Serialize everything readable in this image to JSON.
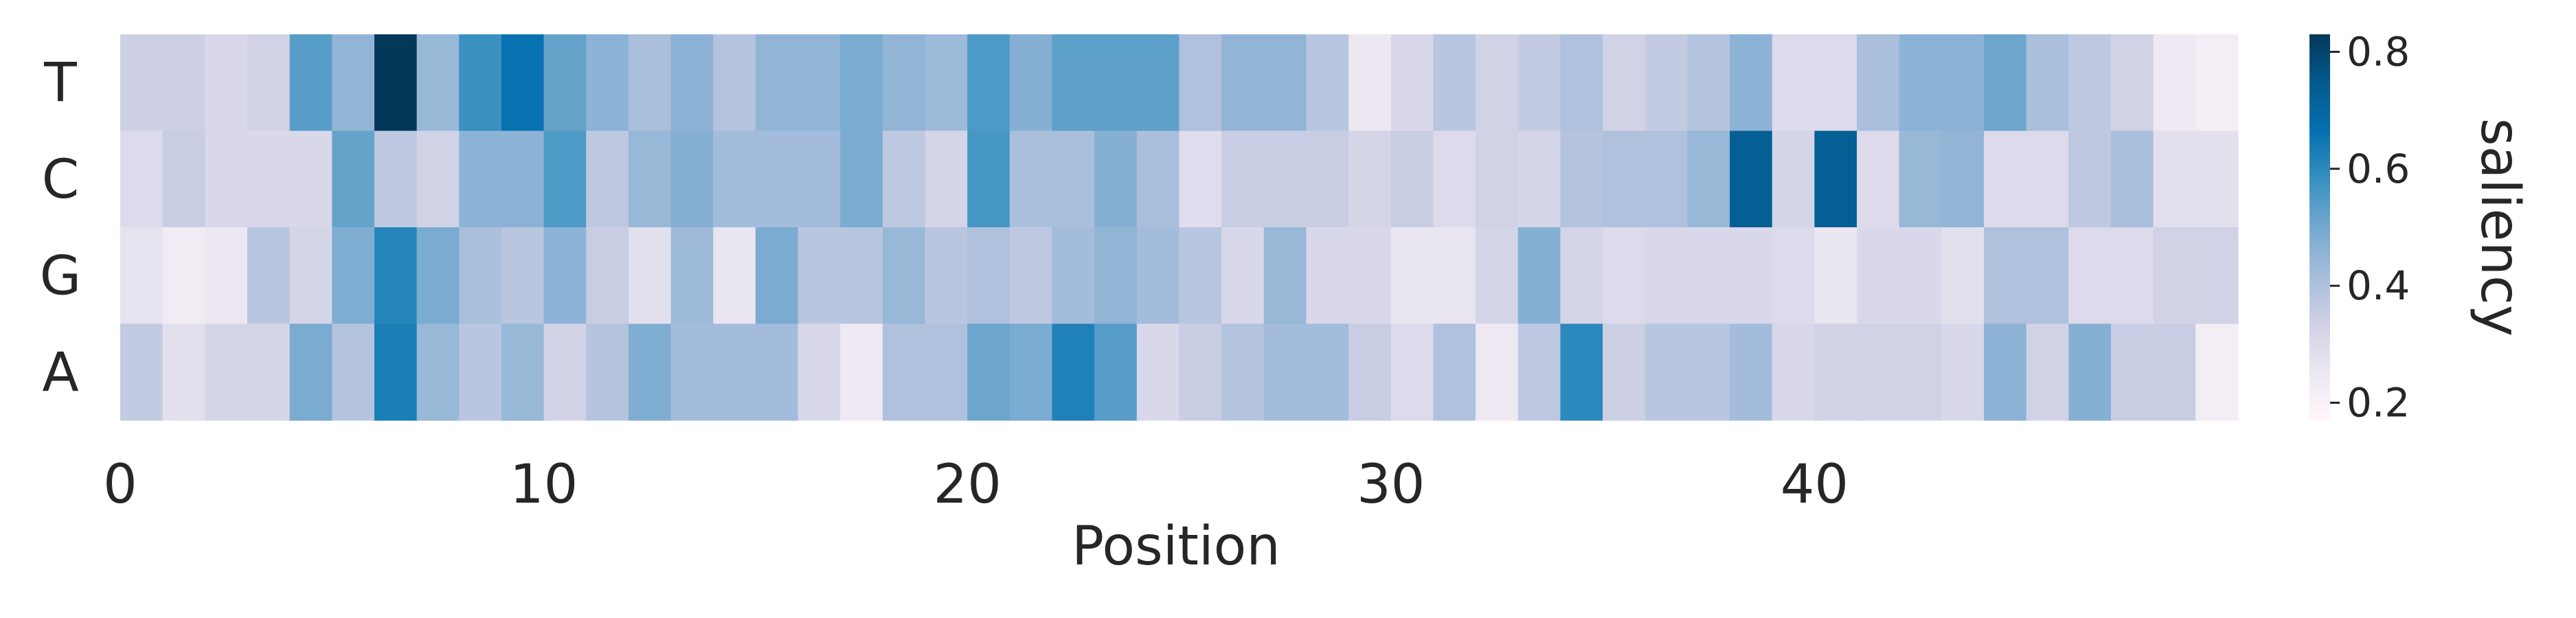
{
  "chart_data": {
    "type": "heatmap",
    "xlabel": "Position",
    "ylabel": "",
    "row_labels": [
      "T",
      "C",
      "G",
      "A"
    ],
    "x_tick_labels": [
      "0",
      "10",
      "20",
      "30",
      "40"
    ],
    "x_tick_positions": [
      0,
      10,
      20,
      30,
      40
    ],
    "n_positions": 50,
    "colorbar": {
      "label": "saliency",
      "min": 0.17,
      "max": 0.83,
      "tick_values": [
        0.2,
        0.4,
        0.6,
        0.8
      ],
      "tick_labels": [
        "0.2",
        "0.4",
        "0.6",
        "0.8"
      ],
      "colors": [
        "#fff7fb",
        "#ece7f2",
        "#d0d1e6",
        "#a6bddb",
        "#74a9cf",
        "#3690c0",
        "#0570b0",
        "#045a8d",
        "#023858"
      ]
    },
    "values": [
      [
        0.34,
        0.34,
        0.31,
        0.33,
        0.54,
        0.45,
        0.83,
        0.44,
        0.58,
        0.66,
        0.52,
        0.46,
        0.41,
        0.46,
        0.39,
        0.45,
        0.45,
        0.49,
        0.45,
        0.43,
        0.55,
        0.47,
        0.53,
        0.53,
        0.53,
        0.4,
        0.45,
        0.45,
        0.38,
        0.25,
        0.31,
        0.38,
        0.33,
        0.36,
        0.4,
        0.33,
        0.36,
        0.39,
        0.46,
        0.3,
        0.3,
        0.41,
        0.46,
        0.46,
        0.51,
        0.41,
        0.37,
        0.33,
        0.24,
        0.22
      ],
      [
        0.3,
        0.35,
        0.31,
        0.31,
        0.31,
        0.52,
        0.37,
        0.33,
        0.46,
        0.46,
        0.55,
        0.37,
        0.44,
        0.47,
        0.42,
        0.42,
        0.42,
        0.49,
        0.37,
        0.32,
        0.56,
        0.41,
        0.41,
        0.47,
        0.41,
        0.29,
        0.35,
        0.35,
        0.35,
        0.32,
        0.35,
        0.3,
        0.33,
        0.32,
        0.39,
        0.4,
        0.4,
        0.44,
        0.73,
        0.32,
        0.73,
        0.3,
        0.44,
        0.45,
        0.3,
        0.3,
        0.37,
        0.41,
        0.28,
        0.28
      ],
      [
        0.27,
        0.23,
        0.25,
        0.38,
        0.32,
        0.48,
        0.61,
        0.49,
        0.41,
        0.38,
        0.46,
        0.35,
        0.28,
        0.43,
        0.26,
        0.49,
        0.38,
        0.38,
        0.44,
        0.38,
        0.4,
        0.37,
        0.42,
        0.45,
        0.42,
        0.38,
        0.31,
        0.44,
        0.31,
        0.31,
        0.26,
        0.26,
        0.32,
        0.47,
        0.32,
        0.3,
        0.31,
        0.31,
        0.31,
        0.3,
        0.26,
        0.31,
        0.31,
        0.28,
        0.4,
        0.4,
        0.3,
        0.3,
        0.33,
        0.33
      ],
      [
        0.36,
        0.28,
        0.32,
        0.32,
        0.49,
        0.39,
        0.63,
        0.44,
        0.38,
        0.44,
        0.33,
        0.39,
        0.48,
        0.42,
        0.42,
        0.42,
        0.31,
        0.24,
        0.4,
        0.4,
        0.51,
        0.49,
        0.62,
        0.54,
        0.31,
        0.35,
        0.39,
        0.42,
        0.42,
        0.35,
        0.3,
        0.4,
        0.24,
        0.37,
        0.6,
        0.34,
        0.38,
        0.38,
        0.42,
        0.31,
        0.33,
        0.33,
        0.33,
        0.31,
        0.46,
        0.33,
        0.47,
        0.35,
        0.35,
        0.22
      ]
    ]
  }
}
